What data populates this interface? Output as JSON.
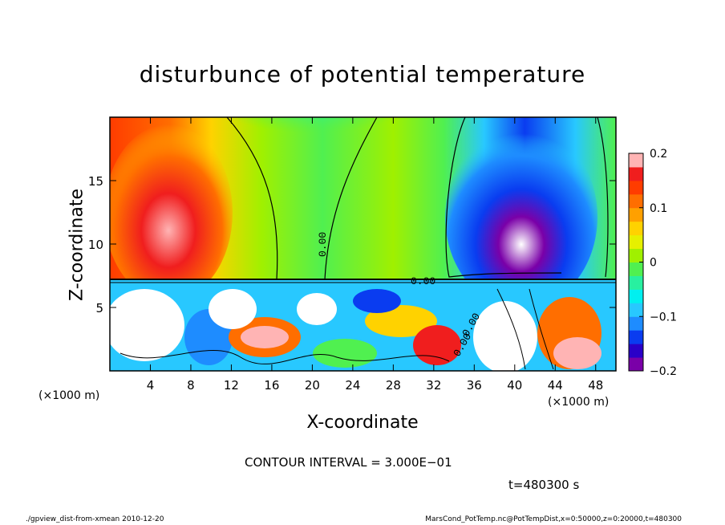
{
  "chart_data": {
    "type": "heatmap",
    "title": "disturbunce of potential temperature",
    "xlabel": "X-coordinate",
    "ylabel": "Z-coordinate",
    "x_unit": "(×1000 m)",
    "x_unit_right": "(×1000 m)",
    "xlim": [
      0,
      50
    ],
    "ylim": [
      0,
      20
    ],
    "x_ticks": [
      "4",
      "8",
      "12",
      "16",
      "20",
      "24",
      "28",
      "32",
      "36",
      "40",
      "44",
      "48"
    ],
    "x_tick_values": [
      4,
      8,
      12,
      16,
      20,
      24,
      28,
      32,
      36,
      40,
      44,
      48
    ],
    "y_ticks": [
      "5",
      "10",
      "15"
    ],
    "y_tick_values": [
      5,
      10,
      15
    ],
    "colorbar": {
      "min": -0.2,
      "max": 0.2,
      "tick_labels": [
        "0.2",
        "0.1",
        "0",
        "−0.1",
        "−0.2"
      ],
      "tick_values": [
        0.2,
        0.1,
        0,
        -0.1,
        -0.2
      ],
      "colors": [
        "#7a00a8",
        "#2a00c8",
        "#0a3cf0",
        "#1e8cff",
        "#28c8ff",
        "#00f0f0",
        "#28f0a0",
        "#50f050",
        "#a0f000",
        "#e6f000",
        "#ffd200",
        "#ffa000",
        "#ff6e00",
        "#ff3c00",
        "#f01e1e",
        "#ffb4b4"
      ]
    },
    "contour_labels": [
      "0.00",
      "0.00",
      "0.00",
      "0.00"
    ],
    "contour_interval": "CONTOUR INTERVAL = 3.000E−01",
    "time": "t=480300 s"
  },
  "footer": {
    "left": "./gpview_dist-from-xmean  2010-12-20",
    "right": "MarsCond_PotTemp.nc@PotTempDist,x=0:50000,z=0:20000,t=480300"
  }
}
